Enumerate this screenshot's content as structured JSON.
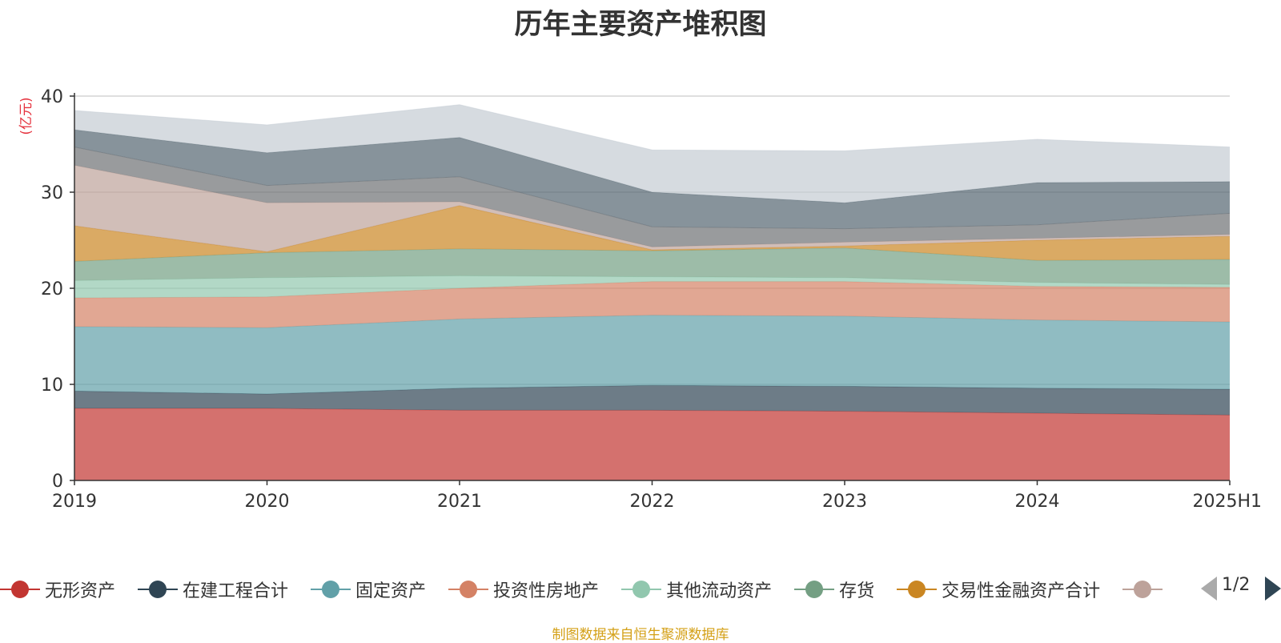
{
  "chart_data": {
    "type": "area",
    "stacked": true,
    "title": "历年主要资产堆积图",
    "ylabel": "(亿元)",
    "ylim": [
      0,
      40
    ],
    "yticks": [
      "0",
      "10",
      "20",
      "30",
      "40"
    ],
    "categories": [
      "2019",
      "2020",
      "2021",
      "2022",
      "2023",
      "2024",
      "2025H1"
    ],
    "grid": true,
    "legend_position": "bottom",
    "series": [
      {
        "name": "无形资产",
        "color": "#c23531",
        "values": [
          7.5,
          7.5,
          7.3,
          7.3,
          7.2,
          7.0,
          6.8
        ]
      },
      {
        "name": "在建工程合计",
        "color": "#2f4554",
        "values": [
          1.8,
          1.5,
          2.3,
          2.6,
          2.6,
          2.6,
          2.7
        ]
      },
      {
        "name": "固定资产",
        "color": "#61a0a8",
        "values": [
          6.7,
          6.9,
          7.2,
          7.3,
          7.3,
          7.1,
          7.0
        ]
      },
      {
        "name": "投资性房地产",
        "color": "#d48265",
        "values": [
          3.0,
          3.2,
          3.2,
          3.5,
          3.6,
          3.5,
          3.6
        ]
      },
      {
        "name": "其他流动资产",
        "color": "#91c7ae",
        "values": [
          1.8,
          2.0,
          1.3,
          0.5,
          0.4,
          0.4,
          0.3
        ]
      },
      {
        "name": "存货",
        "color": "#749f83",
        "values": [
          2.0,
          2.6,
          2.8,
          2.7,
          3.1,
          2.3,
          2.6
        ]
      },
      {
        "name": "交易性金融资产合计",
        "color": "#ca8622",
        "values": [
          3.7,
          0.1,
          4.5,
          0.1,
          0.2,
          2.1,
          2.4
        ]
      },
      {
        "name": "",
        "color": "#bda29a",
        "values": [
          6.3,
          5.1,
          0.4,
          0.3,
          0.4,
          0.2,
          0.2
        ]
      },
      {
        "name": "",
        "color": "#6e7074",
        "values": [
          1.9,
          1.8,
          2.6,
          2.1,
          1.4,
          1.4,
          2.2
        ]
      },
      {
        "name": "",
        "color": "#546570",
        "values": [
          1.8,
          3.4,
          4.1,
          3.6,
          2.7,
          4.4,
          3.3
        ]
      },
      {
        "name": "",
        "color": "#c4ccd3",
        "values": [
          2.0,
          2.9,
          3.4,
          4.4,
          5.4,
          4.5,
          3.6
        ]
      }
    ]
  },
  "legend": {
    "page_indicator": "1/2"
  },
  "source_note": "制图数据来自恒生聚源数据库"
}
